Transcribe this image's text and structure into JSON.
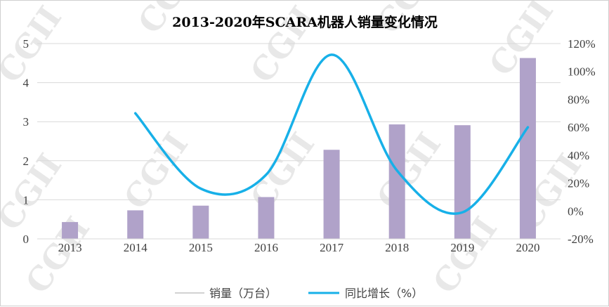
{
  "chart_data": {
    "type": "bar",
    "title": "2013-2020年SCARA机器人销量变化情况",
    "categories": [
      "2013",
      "2014",
      "2015",
      "2016",
      "2017",
      "2018",
      "2019",
      "2020"
    ],
    "series": [
      {
        "name": "销量（万台）",
        "kind": "bar",
        "axis": "left",
        "color": "#b0a2c9",
        "values": [
          0.43,
          0.73,
          0.85,
          1.07,
          2.28,
          2.93,
          2.91,
          4.63
        ]
      },
      {
        "name": "同比增长（%）",
        "kind": "line",
        "axis": "right",
        "color": "#17b0e8",
        "values": [
          null,
          70,
          16,
          26,
          112,
          29,
          -1,
          60
        ]
      }
    ],
    "y_left": {
      "min": 0,
      "max": 5,
      "ticks": [
        "0",
        "1",
        "2",
        "3",
        "4",
        "5"
      ]
    },
    "y_right": {
      "min": -20,
      "max": 120,
      "ticks": [
        "-20%",
        "0%",
        "20%",
        "40%",
        "60%",
        "80%",
        "100%",
        "120%"
      ]
    },
    "grid": true,
    "legend": "bottom"
  },
  "watermark": "CGII"
}
